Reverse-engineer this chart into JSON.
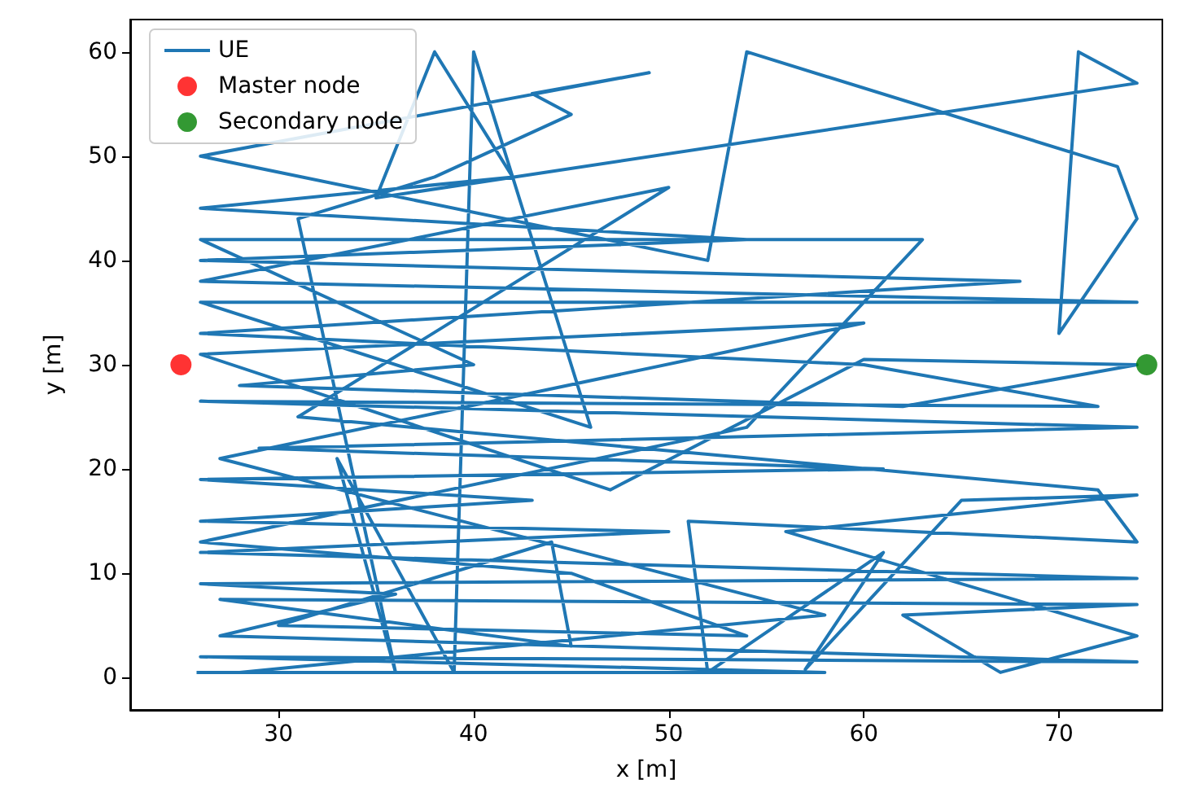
{
  "chart_data": {
    "type": "line",
    "xlabel": "x [m]",
    "ylabel": "y [m]",
    "xlim": [
      22.4,
      75.3
    ],
    "ylim": [
      -3.1,
      63.1
    ],
    "xticks": [
      30,
      40,
      50,
      60,
      70
    ],
    "yticks": [
      0,
      10,
      20,
      30,
      40,
      50,
      60
    ],
    "grid": false,
    "legend": "top left",
    "marker": "none",
    "line_style": "solid",
    "series": [
      {
        "name": "UE",
        "color": "#1f77b4",
        "x": [
          25.8,
          58,
          26,
          74,
          27,
          36,
          26,
          74,
          26,
          50,
          26,
          43,
          26,
          61,
          29,
          74,
          26,
          72,
          60,
          26,
          68,
          26,
          54,
          26,
          42,
          38,
          35,
          74,
          71,
          70,
          74,
          73,
          54,
          52,
          26,
          49,
          43,
          45,
          38,
          31,
          36,
          33,
          39,
          40,
          46,
          26,
          74,
          26,
          50,
          31,
          72,
          74,
          51,
          52,
          61,
          57,
          65,
          74,
          56,
          74,
          67,
          62,
          74,
          27,
          45,
          44,
          30,
          54,
          45,
          26,
          54,
          63,
          26,
          40,
          28,
          62,
          74,
          60,
          47,
          26,
          60,
          27,
          58,
          28
        ],
        "values": [
          0.5,
          0.5,
          2,
          1.5,
          4,
          8,
          9,
          9.5,
          12,
          14,
          15,
          17,
          19,
          20,
          22,
          24,
          26.5,
          26,
          30,
          33,
          38,
          40,
          42,
          45,
          48,
          60,
          46,
          57,
          60,
          33,
          44,
          49,
          60,
          40,
          50,
          58,
          56,
          54,
          48,
          44,
          0.5,
          21,
          0.5,
          60,
          24,
          36,
          36,
          38,
          47,
          25,
          18,
          13,
          15,
          0.5,
          12,
          0.8,
          17,
          17.5,
          14,
          4,
          0.5,
          6,
          7,
          7.5,
          3,
          13,
          5,
          4,
          10,
          13,
          24,
          42,
          42,
          30,
          28,
          26,
          30,
          30.5,
          18,
          31,
          34,
          21,
          6,
          0.5
        ]
      },
      {
        "name": "Master node",
        "type": "scatter",
        "marker": "circle",
        "color": "#ff0000",
        "x": [
          25
        ],
        "values": [
          30
        ]
      },
      {
        "name": "Secondary node",
        "type": "scatter",
        "marker": "circle",
        "color": "#008000",
        "x": [
          74.5
        ],
        "values": [
          30
        ]
      }
    ]
  }
}
